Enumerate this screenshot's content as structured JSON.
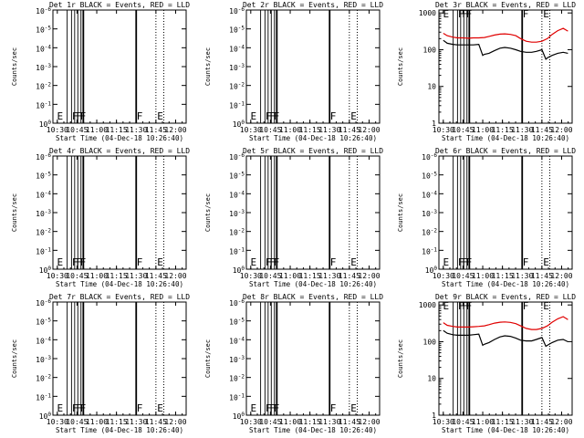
{
  "chart_data": [
    {
      "type": "line",
      "title": "Det 1r BLACK = Events, RED = LLD",
      "ylabel": "Counts/sec",
      "xlabel": "Start Time (04-Dec-18 10:26:40)",
      "xticks": [
        "10:30",
        "10:45",
        "11:00",
        "11:15",
        "11:30",
        "11:45",
        "12:00"
      ],
      "ylog": true,
      "yticks": [
        "10^0",
        "10^-1",
        "10^-2",
        "10^-3",
        "10^-4",
        "10^-5",
        "10^-6"
      ],
      "has_data": false
    },
    {
      "type": "line",
      "title": "Det 2r BLACK = Events, RED = LLD",
      "ylabel": "Counts/sec",
      "xlabel": "Start Time (04-Dec-18 10:26:40)",
      "xticks": [
        "10:30",
        "10:45",
        "11:00",
        "11:15",
        "11:30",
        "11:45",
        "12:00"
      ],
      "ylog": true,
      "yticks": [
        "10^0",
        "10^-1",
        "10^-2",
        "10^-3",
        "10^-4",
        "10^-5",
        "10^-6"
      ],
      "has_data": false
    },
    {
      "type": "line",
      "title": "Det 3r BLACK = Events, RED = LLD",
      "ylabel": "Counts/sec",
      "xlabel": "Start Time (04-Dec-18 10:26:40)",
      "xticks": [
        "10:30",
        "10:45",
        "11:00",
        "11:15",
        "11:30",
        "11:45",
        "12:00"
      ],
      "ylog": true,
      "yticks": [
        "1",
        "10",
        "100",
        "1000"
      ],
      "has_data": true,
      "series": [
        {
          "color": "#e00000",
          "x": [
            10.5,
            10.55,
            10.62,
            10.68,
            10.75,
            10.82,
            10.88,
            10.95,
            11.02,
            11.08,
            11.15,
            11.22,
            11.28,
            11.35,
            11.42,
            11.48,
            11.55,
            11.62,
            11.68,
            11.75,
            11.82,
            11.88,
            11.95,
            12.02,
            12.08
          ],
          "y": [
            280,
            240,
            220,
            210,
            210,
            205,
            210,
            210,
            215,
            230,
            250,
            265,
            270,
            260,
            240,
            200,
            170,
            160,
            160,
            170,
            200,
            260,
            330,
            380,
            320
          ]
        },
        {
          "color": "#000000",
          "x": [
            10.5,
            10.55,
            10.62,
            10.68,
            10.75,
            10.82,
            10.88,
            10.95,
            11.0,
            11.02,
            11.08,
            11.15,
            11.22,
            11.28,
            11.35,
            11.42,
            11.48,
            11.55,
            11.62,
            11.68,
            11.75,
            11.8,
            11.82,
            11.88,
            11.95,
            12.02,
            12.08
          ],
          "y": [
            180,
            150,
            140,
            135,
            135,
            135,
            135,
            140,
            70,
            75,
            80,
            95,
            110,
            115,
            110,
            100,
            90,
            85,
            85,
            90,
            100,
            55,
            60,
            70,
            80,
            85,
            80
          ]
        }
      ]
    },
    {
      "type": "line",
      "title": "Det 4r BLACK = Events, RED = LLD",
      "ylabel": "Counts/sec",
      "xlabel": "Start Time (04-Dec-18 10:26:40)",
      "xticks": [
        "10:30",
        "10:45",
        "11:00",
        "11:15",
        "11:30",
        "11:45",
        "12:00"
      ],
      "ylog": true,
      "yticks": [
        "10^0",
        "10^-1",
        "10^-2",
        "10^-3",
        "10^-4",
        "10^-5",
        "10^-6"
      ],
      "has_data": false
    },
    {
      "type": "line",
      "title": "Det 5r BLACK = Events, RED = LLD",
      "ylabel": "Counts/sec",
      "xlabel": "Start Time (04-Dec-18 10:26:40)",
      "xticks": [
        "10:30",
        "10:45",
        "11:00",
        "11:15",
        "11:30",
        "11:45",
        "12:00"
      ],
      "ylog": true,
      "yticks": [
        "10^0",
        "10^-1",
        "10^-2",
        "10^-3",
        "10^-4",
        "10^-5",
        "10^-6"
      ],
      "has_data": false
    },
    {
      "type": "line",
      "title": "Det 6r BLACK = Events, RED = LLD",
      "ylabel": "Counts/sec",
      "xlabel": "Start Time (04-Dec-18 10:26:40)",
      "xticks": [
        "10:30",
        "10:45",
        "11:00",
        "11:15",
        "11:30",
        "11:45",
        "12:00"
      ],
      "ylog": true,
      "yticks": [
        "10^0",
        "10^-1",
        "10^-2",
        "10^-3",
        "10^-4",
        "10^-5",
        "10^-6"
      ],
      "has_data": false
    },
    {
      "type": "line",
      "title": "Det 7r BLACK = Events, RED = LLD",
      "ylabel": "Counts/sec",
      "xlabel": "Start Time (04-Dec-18 10:26:40)",
      "xticks": [
        "10:30",
        "10:45",
        "11:00",
        "11:15",
        "11:30",
        "11:45",
        "12:00"
      ],
      "ylog": true,
      "yticks": [
        "10^0",
        "10^-1",
        "10^-2",
        "10^-3",
        "10^-4",
        "10^-5",
        "10^-6"
      ],
      "has_data": false
    },
    {
      "type": "line",
      "title": "Det 8r BLACK = Events, RED = LLD",
      "ylabel": "Counts/sec",
      "xlabel": "Start Time (04-Dec-18 10:26:40)",
      "xticks": [
        "10:30",
        "10:45",
        "11:00",
        "11:15",
        "11:30",
        "11:45",
        "12:00"
      ],
      "ylog": true,
      "yticks": [
        "10^0",
        "10^-1",
        "10^-2",
        "10^-3",
        "10^-4",
        "10^-5",
        "10^-6"
      ],
      "has_data": false
    },
    {
      "type": "line",
      "title": "Det 9r BLACK = Events, RED = LLD",
      "ylabel": "Counts/sec",
      "xlabel": "Start Time (04-Dec-18 10:26:40)",
      "xticks": [
        "10:30",
        "10:45",
        "11:00",
        "11:15",
        "11:30",
        "11:45",
        "12:00"
      ],
      "ylog": true,
      "yticks": [
        "1",
        "10",
        "100",
        "1000"
      ],
      "has_data": true,
      "series": [
        {
          "color": "#e00000",
          "x": [
            10.5,
            10.55,
            10.62,
            10.68,
            10.75,
            10.82,
            10.88,
            10.95,
            11.02,
            11.08,
            11.15,
            11.22,
            11.28,
            11.35,
            11.42,
            11.48,
            11.55,
            11.62,
            11.68,
            11.75,
            11.82,
            11.88,
            11.95,
            12.02,
            12.08
          ],
          "y": [
            330,
            280,
            260,
            250,
            250,
            250,
            255,
            260,
            270,
            290,
            320,
            340,
            345,
            335,
            310,
            270,
            230,
            215,
            215,
            230,
            270,
            340,
            420,
            480,
            400
          ]
        },
        {
          "color": "#000000",
          "x": [
            10.5,
            10.55,
            10.62,
            10.68,
            10.75,
            10.82,
            10.88,
            10.95,
            11.0,
            11.02,
            11.08,
            11.15,
            11.22,
            11.28,
            11.35,
            11.42,
            11.48,
            11.55,
            11.62,
            11.68,
            11.75,
            11.8,
            11.82,
            11.88,
            11.95,
            12.02,
            12.08
          ],
          "y": [
            200,
            170,
            155,
            150,
            150,
            150,
            155,
            160,
            80,
            85,
            95,
            115,
            135,
            145,
            140,
            125,
            110,
            105,
            105,
            115,
            130,
            75,
            80,
            95,
            110,
            115,
            100
          ]
        }
      ]
    }
  ],
  "markers": {
    "solid_x": [
      10.625,
      10.68,
      10.72,
      10.76,
      10.8,
      10.83,
      11.5
    ],
    "solid_thick_x": [
      10.83,
      11.5
    ],
    "dotted_x": [
      11.75,
      11.85
    ],
    "letters": [
      {
        "x": 10.5,
        "t": "E"
      },
      {
        "x": 10.69,
        "t": "F"
      },
      {
        "x": 10.74,
        "t": "F"
      },
      {
        "x": 10.79,
        "t": "F"
      },
      {
        "x": 11.51,
        "t": "F"
      },
      {
        "x": 11.77,
        "t": "E"
      }
    ]
  },
  "xrange": [
    10.4444,
    12.1333
  ]
}
